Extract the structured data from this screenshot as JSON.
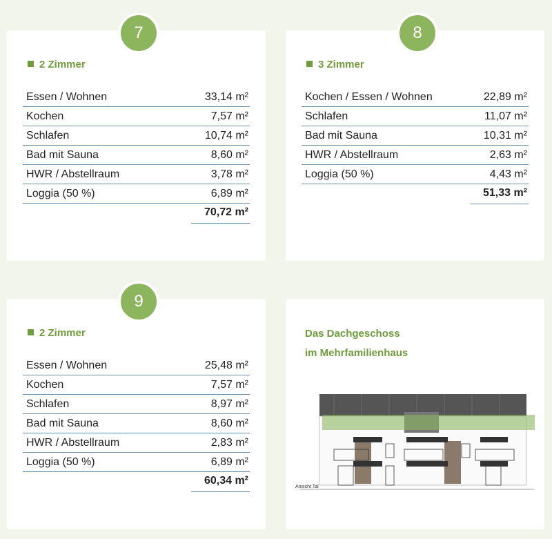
{
  "cards": [
    {
      "number": "7",
      "heading": "2 Zimmer",
      "rows": [
        {
          "label": "Essen / Wohnen",
          "value": "33,14 m²"
        },
        {
          "label": "Kochen",
          "value": "7,57 m²"
        },
        {
          "label": "Schlafen",
          "value": "10,74 m²"
        },
        {
          "label": "Bad mit Sauna",
          "value": "8,60 m²"
        },
        {
          "label": "HWR / Abstellraum",
          "value": "3,78 m²"
        },
        {
          "label": "Loggia (50 %)",
          "value": "6,89 m²"
        }
      ],
      "total": "70,72 m²"
    },
    {
      "number": "8",
      "heading": "3 Zimmer",
      "rows": [
        {
          "label": "Kochen / Essen / Wohnen",
          "value": "22,89 m²"
        },
        {
          "label": "Schlafen",
          "value": "11,07 m²"
        },
        {
          "label": "Bad mit Sauna",
          "value": "10,31 m²"
        },
        {
          "label": "HWR / Abstellraum",
          "value": "2,63 m²"
        },
        {
          "label": "Loggia (50 %)",
          "value": "4,43 m²"
        }
      ],
      "total": "51,33 m²"
    },
    {
      "number": "9",
      "heading": "2 Zimmer",
      "rows": [
        {
          "label": "Essen / Wohnen",
          "value": "25,48 m²"
        },
        {
          "label": "Kochen",
          "value": "7,57 m²"
        },
        {
          "label": "Schlafen",
          "value": "8,97 m²"
        },
        {
          "label": "Bad mit Sauna",
          "value": "8,60 m²"
        },
        {
          "label": "HWR / Abstellraum",
          "value": "2,83 m²"
        },
        {
          "label": "Loggia (50 %)",
          "value": "6,89 m²"
        }
      ],
      "total": "60,34 m²"
    }
  ],
  "feature": {
    "title_lines": [
      "Das Dachgeschoss",
      "im Mehrfamilienhaus"
    ],
    "caption": "Ansicht Tal"
  }
}
